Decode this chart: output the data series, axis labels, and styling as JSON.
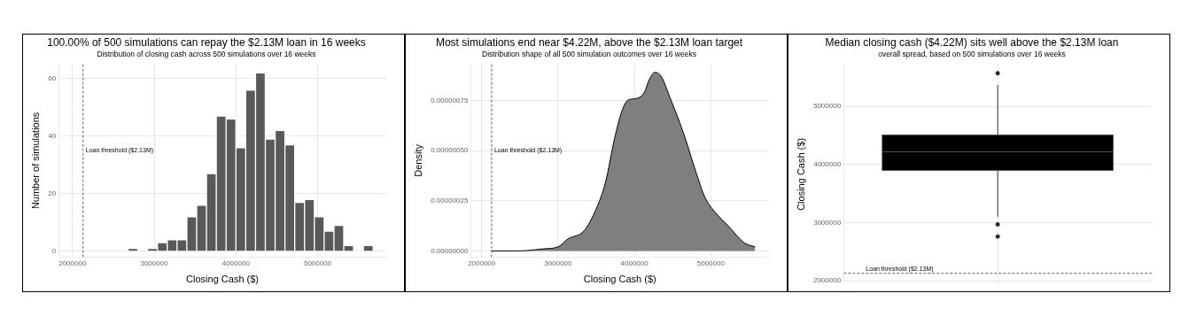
{
  "chart_data": [
    {
      "type": "histogram",
      "title": "100.00% of 500 simulations can repay the $2.13M loan in 16 weeks",
      "subtitle": "Distribution of closing cash across 500 simulations over 16 weeks",
      "xlabel": "Closing Cash ($)",
      "ylabel": "Number of simulations",
      "bins": [
        2680000,
        2800000,
        2920000,
        3040000,
        3160000,
        3280000,
        3400000,
        3520000,
        3640000,
        3760000,
        3880000,
        4000000,
        4120000,
        4240000,
        4360000,
        4480000,
        4600000,
        4720000,
        4840000,
        4960000,
        5080000,
        5200000,
        5320000,
        5440000,
        5560000,
        5680000
      ],
      "values": [
        1,
        0,
        1,
        3,
        4,
        4,
        12,
        16,
        27,
        47,
        46,
        36,
        56,
        62,
        39,
        42,
        37,
        17,
        18,
        12,
        7,
        9,
        2,
        0,
        2
      ],
      "color": "#595959",
      "xlim": [
        1830000,
        5840000
      ],
      "xticks": [
        2000000,
        3000000,
        4000000,
        5000000
      ],
      "ylim": [
        -2,
        65
      ],
      "yticks": [
        0,
        20,
        40,
        60
      ],
      "grid": true,
      "legend": false,
      "ref_lines": [
        {
          "axis": "x",
          "value": 2130000,
          "label": "Loan threshold ($2.13M)",
          "color": "#333333",
          "line_style": "dashed"
        }
      ]
    },
    {
      "type": "area",
      "title": "Most simulations end near $4.22M, above the $2.13M loan target",
      "subtitle": "Distribution shape of all 500 simulation outcomes over 16 weeks",
      "xlabel": "Closing Cash ($)",
      "ylabel": "Density",
      "series": [
        {
          "color": "#7f7f7f",
          "x": [
            2130000,
            2500000,
            2800000,
            3000000,
            3130000,
            3340000,
            3500000,
            3620000,
            3740000,
            3830000,
            3910000,
            4030000,
            4130000,
            4190000,
            4270000,
            4350000,
            4470000,
            4640000,
            4800000,
            4920000,
            5040000,
            5240000,
            5440000,
            5580000
          ],
          "values": [
            0,
            0,
            1e-08,
            2e-08,
            6e-08,
            1e-07,
            2.1e-07,
            3.4e-07,
            5.6e-07,
            6.9e-07,
            7.5e-07,
            7.6e-07,
            7.9e-07,
            8.5e-07,
            8.9e-07,
            8.7e-07,
            7.6e-07,
            5.9e-07,
            4e-07,
            2.7e-07,
            2e-07,
            1.2e-07,
            4e-08,
            2e-08
          ]
        }
      ],
      "xlim": [
        1858000,
        5762000
      ],
      "xticks": [
        2000000,
        3000000,
        4000000,
        5000000
      ],
      "ylim": [
        -3e-08,
        9.3e-07
      ],
      "yticks": [
        {
          "value": 0,
          "label": "0.00000000"
        },
        {
          "value": 2.5e-07,
          "label": "0.00000025"
        },
        {
          "value": 5e-07,
          "label": "0.00000050"
        },
        {
          "value": 7.5e-07,
          "label": "0.00000075"
        }
      ],
      "grid": true,
      "legend": false,
      "ref_lines": [
        {
          "axis": "x",
          "value": 2130000,
          "label": "Loan threshold ($2.13M)",
          "color": "#333333",
          "line_style": "dashed"
        }
      ]
    },
    {
      "type": "box",
      "title": "Median closing cash ($4.22M) sits well above the $2.13M loan",
      "subtitle": "overall spread, based on 500 simulations over 16 weeks",
      "ylabel": "Closing Cash ($)",
      "categories": [
        null
      ],
      "color": "#000000",
      "boxes": [
        {
          "low": 3104000,
          "q1": 3900000,
          "median": 4220000,
          "q3": 4510000,
          "high": 5368000,
          "outliers": [
            5571000,
            2971000,
            2763000
          ]
        }
      ],
      "ylim": [
        1940000,
        5725000
      ],
      "yticks": [
        2000000,
        3000000,
        4000000,
        5000000
      ],
      "tick_labels": "y",
      "grid": true,
      "legend": false,
      "ref_lines": [
        {
          "axis": "y",
          "value": 2130000,
          "label": "Loan threshold ($2.13M)",
          "color": "#333333",
          "line_style": "dashed"
        }
      ]
    }
  ]
}
